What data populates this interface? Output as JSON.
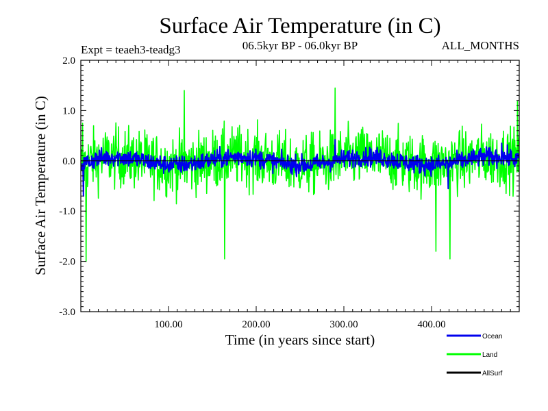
{
  "colors": {
    "background": "#ffffff",
    "axis": "#000000",
    "ocean": "#0000ee",
    "land": "#00ff00",
    "allsurf": "#000000"
  },
  "chart_data": {
    "type": "line",
    "title": "Surface Air Temperature (in C)",
    "subtitle_left": "Expt = teaeh3-teadg3",
    "subtitle_center": "06.5kyr BP - 06.0kyr BP",
    "subtitle_right": "ALL_MONTHS",
    "xlabel": "Time (in years since start)",
    "ylabel": "Surface Air Temperature (in C)",
    "xlim": [
      0,
      500
    ],
    "ylim": [
      -3.0,
      2.0
    ],
    "x_ticks": [
      100,
      200,
      300,
      400
    ],
    "x_tick_labels": [
      "100.00",
      "200.00",
      "300.00",
      "400.00"
    ],
    "y_ticks": [
      -3.0,
      -2.0,
      -1.0,
      0.0,
      1.0,
      2.0
    ],
    "y_tick_labels": [
      "-3.0",
      "-2.0",
      "-1.0",
      "0.0",
      "1.0",
      "2.0"
    ],
    "zero_line": 0.0,
    "legend_position": "bottom-right",
    "series": [
      {
        "name": "Land",
        "color": "#00ff00",
        "x_start": 0,
        "x_step": 0.5,
        "amplitude": 0.55,
        "features": [
          {
            "x": 6,
            "value": -2.0
          },
          {
            "x": 2,
            "value": 0.75
          },
          {
            "x": 118,
            "value": 1.4
          },
          {
            "x": 164,
            "value": -1.95
          },
          {
            "x": 290,
            "value": 1.45
          },
          {
            "x": 405,
            "value": -1.8
          },
          {
            "x": 421,
            "value": -1.95
          },
          {
            "x": 498,
            "value": 1.18
          }
        ]
      },
      {
        "name": "Ocean",
        "color": "#0000ee",
        "x_start": 0,
        "x_step": 0.5,
        "amplitude": 0.17,
        "features": [
          {
            "x": 3,
            "value": -0.7
          },
          {
            "x": 290,
            "value": 0.42
          },
          {
            "x": 419,
            "value": -0.55
          },
          {
            "x": 480,
            "value": 0.35
          }
        ]
      },
      {
        "name": "AllSurf",
        "color": "#000000",
        "values": []
      }
    ],
    "legend": [
      {
        "name": "Ocean",
        "color": "#0000ee"
      },
      {
        "name": "Land",
        "color": "#00ff00"
      },
      {
        "name": "AllSurf",
        "color": "#000000"
      }
    ]
  }
}
